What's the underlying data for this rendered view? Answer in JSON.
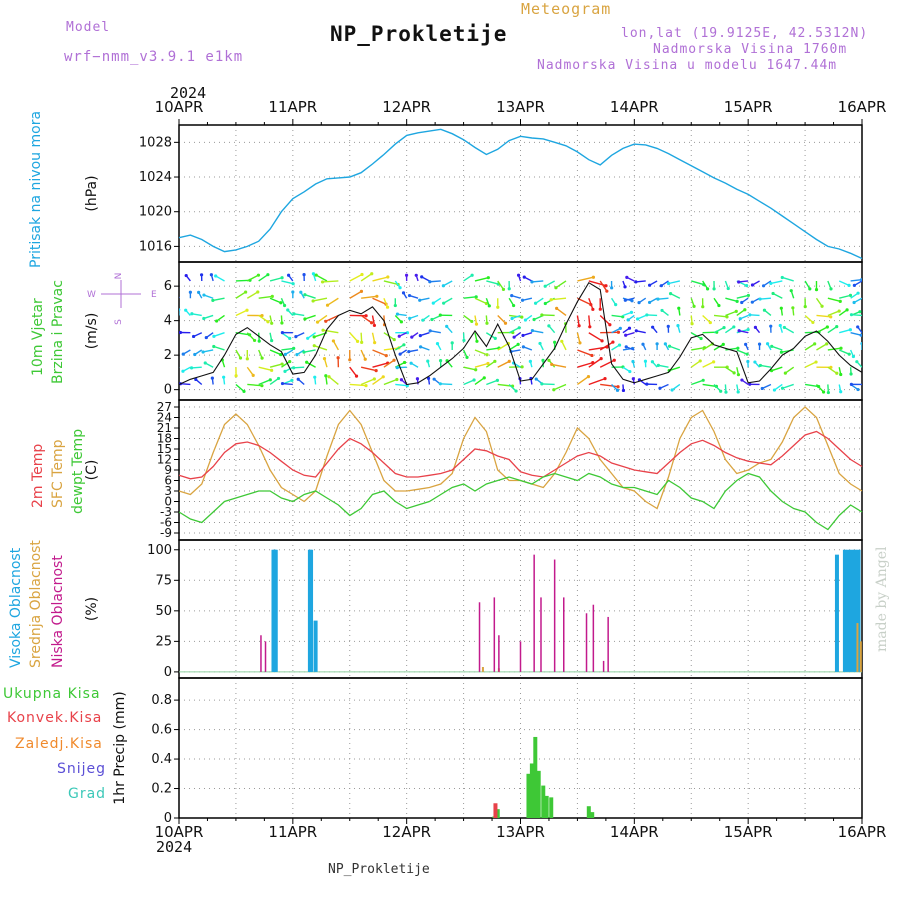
{
  "header": {
    "model_label": "Model",
    "model_name": "wrf−nmm_v3.9.1  e1km",
    "title": "NP_Prokletije",
    "subtitle": "Meteogram",
    "coords": "lon,lat (19.9125E, 42.5312N)",
    "altitude": "Nadmorska Visina 1760m",
    "model_altitude": "Nadmorska Visina u modelu 1647.44m",
    "year": "2024",
    "footer": "NP_Prokletije",
    "watermark": "made by Angel"
  },
  "colors": {
    "pressure": "#1ea6e0",
    "temp2m": "#e8424a",
    "tempsfc": "#d9a441",
    "dewpt": "#3ec836",
    "high_cloud": "#1ea6e0",
    "mid_cloud": "#d9a441",
    "low_cloud": "#c21a8c",
    "precip_total": "#3ec836",
    "precip_conv": "#e8424a",
    "precip_ice": "#f08a2c",
    "snow": "#5b4fd6",
    "grad": "#3cc8b8",
    "title_purple": "#b070d6",
    "wind_label": "#3ec836"
  },
  "chart_data": [
    {
      "type": "line",
      "panel": "pressure",
      "ylabel": "Pritisak na nivou mora",
      "units": "(hPa)",
      "x_ticks": [
        "10APR",
        "11APR",
        "12APR",
        "13APR",
        "14APR",
        "15APR",
        "16APR"
      ],
      "yticks": [
        1016,
        1020,
        1024,
        1028
      ],
      "ylim": [
        1014.2,
        1030.0
      ],
      "series": [
        {
          "x": [
            0,
            0.1,
            0.2,
            0.3,
            0.4,
            0.5,
            0.6,
            0.7,
            0.8,
            0.9,
            1.0,
            1.1,
            1.2,
            1.3,
            1.4,
            1.5,
            1.6,
            1.7,
            1.8,
            1.9,
            2.0,
            2.1,
            2.2,
            2.3,
            2.4,
            2.5,
            2.6,
            2.7,
            2.8,
            2.9,
            3.0,
            3.1,
            3.2,
            3.3,
            3.4,
            3.5,
            3.6,
            3.7,
            3.8,
            3.9,
            4.0,
            4.1,
            4.2,
            4.3,
            4.4,
            4.5,
            4.6,
            4.7,
            4.8,
            4.9,
            5.0,
            5.1,
            5.2,
            5.3,
            5.4,
            5.5,
            5.6,
            5.7,
            5.8,
            5.9,
            6.0
          ],
          "values": [
            1017.0,
            1017.3,
            1016.8,
            1016.0,
            1015.4,
            1015.6,
            1016.0,
            1016.6,
            1018.0,
            1020.0,
            1021.5,
            1022.3,
            1023.2,
            1023.8,
            1023.9,
            1024.0,
            1024.5,
            1025.5,
            1026.6,
            1027.8,
            1028.8,
            1029.1,
            1029.3,
            1029.5,
            1029.0,
            1028.3,
            1027.4,
            1026.6,
            1027.2,
            1028.2,
            1028.7,
            1028.5,
            1028.4,
            1028.0,
            1027.6,
            1026.9,
            1026.0,
            1025.4,
            1026.5,
            1027.3,
            1027.8,
            1027.7,
            1027.3,
            1026.7,
            1026.0,
            1025.3,
            1024.6,
            1023.9,
            1023.3,
            1022.6,
            1022.0,
            1021.2,
            1020.4,
            1019.5,
            1018.6,
            1017.7,
            1016.8,
            1016.0,
            1015.7,
            1015.2,
            1014.6
          ]
        }
      ]
    },
    {
      "type": "line",
      "panel": "wind",
      "ylabel": "10m Vjetar Brzina i Pravac",
      "units": "(m/s)",
      "compass": {
        "north": "N",
        "south": "S",
        "east": "E",
        "west": "W"
      },
      "yticks": [
        0,
        2,
        4,
        6
      ],
      "ylim": [
        -0.6,
        7.4
      ],
      "series": [
        {
          "name": "wind speed",
          "x": [
            0,
            0.1,
            0.2,
            0.3,
            0.4,
            0.5,
            0.6,
            0.7,
            0.8,
            0.9,
            1.0,
            1.1,
            1.2,
            1.3,
            1.4,
            1.5,
            1.6,
            1.7,
            1.8,
            1.9,
            2.0,
            2.1,
            2.2,
            2.3,
            2.4,
            2.5,
            2.6,
            2.7,
            2.8,
            2.9,
            3.0,
            3.1,
            3.2,
            3.3,
            3.4,
            3.5,
            3.6,
            3.7,
            3.8,
            3.9,
            4.0,
            4.1,
            4.2,
            4.3,
            4.4,
            4.5,
            4.6,
            4.7,
            4.8,
            4.9,
            5.0,
            5.1,
            5.2,
            5.3,
            5.4,
            5.5,
            5.6,
            5.7,
            5.8,
            5.9,
            6.0
          ],
          "values": [
            0.3,
            0.6,
            0.8,
            1.0,
            2.0,
            3.2,
            3.6,
            3.1,
            2.6,
            2.2,
            0.9,
            1.0,
            2.0,
            3.5,
            4.3,
            4.6,
            4.4,
            4.8,
            4.0,
            2.0,
            0.3,
            0.4,
            0.8,
            1.3,
            1.8,
            2.4,
            3.4,
            2.5,
            3.8,
            2.5,
            0.5,
            0.6,
            1.5,
            2.4,
            3.8,
            5.1,
            6.2,
            5.8,
            1.5,
            0.6,
            0.4,
            0.6,
            0.8,
            1.0,
            1.9,
            3.0,
            3.2,
            2.6,
            2.4,
            2.2,
            0.4,
            0.5,
            1.2,
            2.0,
            2.4,
            3.1,
            3.4,
            2.8,
            2.0,
            1.4,
            1.0
          ]
        }
      ]
    },
    {
      "type": "line",
      "panel": "temperature",
      "units": "(C)",
      "yticks": [
        -9,
        -6,
        -3,
        0,
        3,
        6,
        9,
        12,
        15,
        18,
        21,
        24,
        27
      ],
      "ylim": [
        -11,
        29
      ],
      "x": [
        0,
        0.1,
        0.2,
        0.3,
        0.4,
        0.5,
        0.6,
        0.7,
        0.8,
        0.9,
        1.0,
        1.1,
        1.2,
        1.3,
        1.4,
        1.5,
        1.6,
        1.7,
        1.8,
        1.9,
        2.0,
        2.1,
        2.2,
        2.3,
        2.4,
        2.5,
        2.6,
        2.7,
        2.8,
        2.9,
        3.0,
        3.1,
        3.2,
        3.3,
        3.4,
        3.5,
        3.6,
        3.7,
        3.8,
        3.9,
        4.0,
        4.1,
        4.2,
        4.3,
        4.4,
        4.5,
        4.6,
        4.7,
        4.8,
        4.9,
        5.0,
        5.1,
        5.2,
        5.3,
        5.4,
        5.5,
        5.6,
        5.7,
        5.8,
        5.9,
        6.0
      ],
      "series": [
        {
          "name": "2m Temp",
          "values": [
            7.5,
            6.5,
            7.0,
            10.0,
            14.0,
            16.5,
            17.0,
            16.0,
            14.0,
            11.5,
            9.0,
            7.5,
            7.0,
            11.0,
            15.0,
            18.0,
            16.5,
            14.0,
            11.0,
            8.0,
            7.0,
            7.0,
            7.5,
            8.0,
            9.0,
            12.0,
            15.0,
            14.5,
            13.0,
            12.0,
            8.5,
            7.5,
            7.0,
            9.0,
            11.0,
            13.0,
            14.0,
            13.0,
            11.0,
            10.0,
            9.0,
            8.5,
            8.0,
            11.0,
            14.0,
            16.5,
            17.5,
            16.0,
            14.0,
            12.5,
            11.5,
            11.0,
            10.5,
            13.0,
            16.0,
            19.0,
            20.0,
            18.0,
            15.0,
            12.0,
            10.0
          ]
        },
        {
          "name": "SFC Temp",
          "values": [
            3.0,
            2.0,
            5.0,
            14.0,
            22.0,
            25.0,
            22.0,
            16.0,
            9.0,
            4.0,
            2.0,
            0.0,
            3.0,
            13.0,
            22.0,
            26.0,
            22.0,
            14.0,
            6.0,
            3.0,
            3.0,
            3.5,
            4.0,
            5.0,
            8.0,
            18.0,
            24.0,
            20.0,
            9.0,
            6.0,
            6.0,
            5.0,
            4.0,
            8.0,
            14.0,
            21.0,
            18.0,
            12.0,
            8.0,
            4.0,
            3.0,
            0.0,
            -2.0,
            7.0,
            18.0,
            24.0,
            26.0,
            20.0,
            12.0,
            8.0,
            9.0,
            11.0,
            12.0,
            17.0,
            24.0,
            27.0,
            24.0,
            16.0,
            8.0,
            5.0,
            3.0
          ]
        },
        {
          "name": "dewpt Temp",
          "values": [
            -3.0,
            -5.0,
            -6.0,
            -3.0,
            0.0,
            1.0,
            2.0,
            3.0,
            3.0,
            1.0,
            0.0,
            2.0,
            3.0,
            1.0,
            -1.0,
            -4.0,
            -2.0,
            2.0,
            3.0,
            0.0,
            -2.0,
            -1.0,
            0.0,
            2.0,
            4.0,
            5.0,
            3.0,
            5.0,
            6.0,
            7.0,
            6.0,
            5.0,
            7.0,
            8.0,
            7.0,
            6.0,
            8.0,
            7.0,
            5.0,
            4.0,
            4.0,
            3.0,
            2.0,
            6.0,
            4.0,
            1.0,
            0.0,
            -2.0,
            3.0,
            6.0,
            8.0,
            7.0,
            3.0,
            0.0,
            -2.0,
            -3.0,
            -6.0,
            -8.0,
            -4.0,
            -1.0,
            -3.0
          ]
        }
      ]
    },
    {
      "type": "bar",
      "panel": "clouds",
      "units": "(%)",
      "yticks": [
        0,
        25,
        50,
        75,
        100
      ],
      "ylim": [
        -5,
        108
      ],
      "series": [
        {
          "name": "Visoka Oblacnost",
          "x": [
            0.83,
            0.84,
            0.85,
            1.15,
            1.16,
            1.2,
            5.78,
            5.85,
            5.88,
            5.91,
            5.94,
            5.97
          ],
          "values": [
            100,
            100,
            100,
            100,
            100,
            42,
            96,
            100,
            100,
            100,
            100,
            100
          ]
        },
        {
          "name": "Srednja Oblacnost",
          "x": [
            2.67,
            2.81,
            5.96,
            5.99
          ],
          "values": [
            4,
            3,
            40,
            25
          ]
        },
        {
          "name": "Niska Oblacnost",
          "x": [
            0.72,
            0.76,
            2.64,
            2.77,
            2.81,
            3.0,
            3.12,
            3.18,
            3.3,
            3.38,
            3.58,
            3.64,
            3.73,
            3.77
          ],
          "values": [
            30,
            25,
            57,
            61,
            30,
            25,
            96,
            61,
            92,
            61,
            48,
            55,
            9,
            45
          ]
        }
      ]
    },
    {
      "type": "bar",
      "panel": "precip",
      "ylabel": "1hr Precip",
      "units": "(mm)",
      "x_ticks": [
        "10APR",
        "11APR",
        "12APR",
        "13APR",
        "14APR",
        "15APR",
        "16APR"
      ],
      "yticks": [
        0,
        0.2,
        0.4,
        0.6,
        0.8
      ],
      "ylim": [
        0,
        0.95
      ],
      "series": [
        {
          "name": "Ukupna Kisa",
          "x": [
            2.77,
            2.8,
            3.07,
            3.1,
            3.13,
            3.16,
            3.2,
            3.23,
            3.27,
            3.6,
            3.63
          ],
          "values": [
            0.01,
            0.06,
            0.3,
            0.37,
            0.55,
            0.32,
            0.22,
            0.15,
            0.14,
            0.08,
            0.04
          ]
        },
        {
          "name": "Konvek.Kisa",
          "x": [
            2.78
          ],
          "values": [
            0.1
          ]
        },
        {
          "name": "Zaledj.Kisa",
          "x": [],
          "values": []
        },
        {
          "name": "Snijeg",
          "x": [],
          "values": []
        },
        {
          "name": "Grad",
          "x": [],
          "values": []
        }
      ]
    }
  ],
  "panel_labels": {
    "pressure": "Pritisak na nivou mora",
    "wind_1": "10m Vjetar",
    "wind_2": "Brzina i Pravac",
    "temp_2m": "2m Temp",
    "temp_sfc": "SFC Temp",
    "temp_dew": "dewpt Temp",
    "cloud_high": "Visoka Oblacnost",
    "cloud_mid": "Srednja Oblacnost",
    "cloud_low": "Niska Oblacnost",
    "precip_total": "Ukupna Kisa",
    "precip_conv": "Konvek.Kisa",
    "precip_ice": "Zaledj.Kisa",
    "precip_snow": "Snijeg",
    "precip_grad": "Grad",
    "precip_units": "1hr Precip (mm)"
  }
}
